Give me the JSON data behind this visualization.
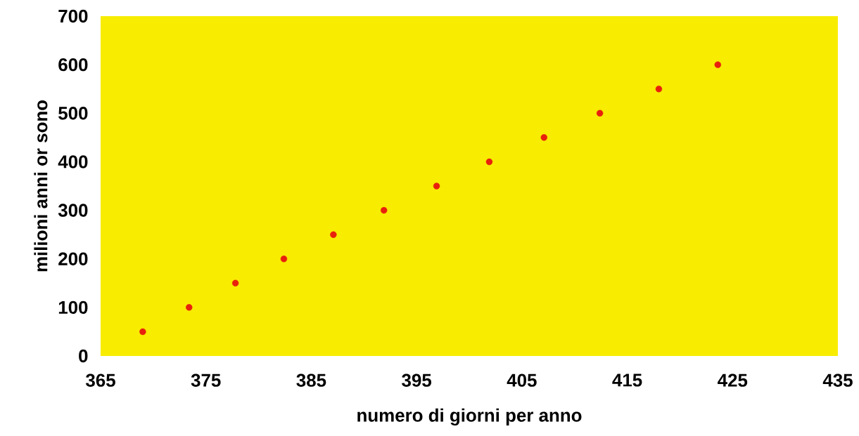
{
  "chart_data": {
    "type": "scatter",
    "xlabel": "numero di giorni per anno",
    "ylabel": "milioni anni or sono",
    "x": [
      369.0,
      373.4,
      377.8,
      382.4,
      387.1,
      391.9,
      396.9,
      401.9,
      407.1,
      412.4,
      418.0,
      423.6
    ],
    "values": [
      50,
      100,
      150,
      200,
      250,
      300,
      350,
      400,
      450,
      500,
      550,
      600
    ],
    "color": "#e8200c",
    "marker": "circle",
    "xlim": [
      365,
      435
    ],
    "ylim": [
      0,
      700
    ],
    "xticks": [
      365,
      375,
      385,
      395,
      405,
      415,
      425,
      435
    ],
    "yticks": [
      0,
      100,
      200,
      300,
      400,
      500,
      600,
      700
    ]
  }
}
